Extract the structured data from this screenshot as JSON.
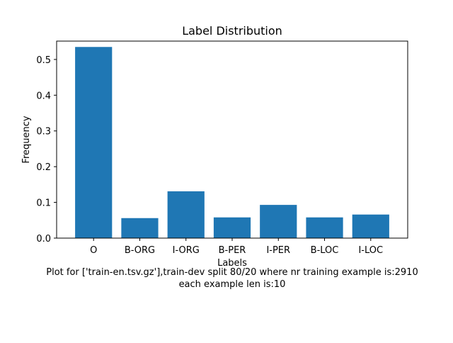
{
  "chart_data": {
    "type": "bar",
    "title": "Label Distribution",
    "xlabel": "Labels",
    "ylabel": "Frequency",
    "categories": [
      "O",
      "B-ORG",
      "I-ORG",
      "B-PER",
      "I-PER",
      "B-LOC",
      "I-LOC"
    ],
    "values": [
      0.535,
      0.056,
      0.131,
      0.058,
      0.093,
      0.058,
      0.066
    ],
    "ylim": [
      0,
      0.5514
    ],
    "yticks": [
      "0.0",
      "0.1",
      "0.2",
      "0.3",
      "0.4",
      "0.5"
    ],
    "bar_color": "#1f77b4",
    "grid": false,
    "legend": "none"
  },
  "caption": {
    "line1": "Plot for ['train-en.tsv.gz'],train-dev split 80/20 where nr training example is:2910",
    "line2": "each example len is:10"
  }
}
